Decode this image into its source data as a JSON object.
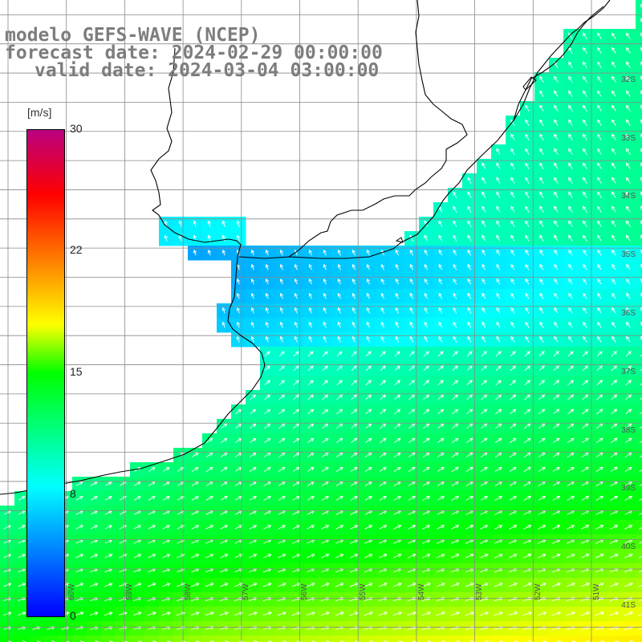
{
  "title": {
    "line1": "modelo GEFS-WAVE (NCEP)",
    "line2": "forecast date: 2024-02-29 00:00:00",
    "line3": "valid date: 2024-03-04 03:00:00"
  },
  "colorbar": {
    "unit": "[m/s]",
    "ticks": [
      "30",
      "22",
      "15",
      "8",
      "0"
    ],
    "range": [
      0,
      30
    ],
    "colors": [
      "#0000ff",
      "#00ffff",
      "#00ff00",
      "#ffff00",
      "#ff8000",
      "#ff0000",
      "#b90080"
    ]
  },
  "axes": {
    "lat_labels": [
      "32S",
      "33S",
      "34S",
      "35S",
      "36S",
      "37S",
      "38S",
      "39S",
      "40S",
      "41S"
    ],
    "lon_labels": [
      "60W",
      "59W",
      "58W",
      "57W",
      "56W",
      "55W",
      "54W",
      "53W",
      "52W",
      "51W"
    ]
  },
  "colors": {
    "land": "#ffffff",
    "coast": "#000000",
    "grid": "#808080",
    "arrow": "#ffffff",
    "title": "#7d7d7d"
  }
}
